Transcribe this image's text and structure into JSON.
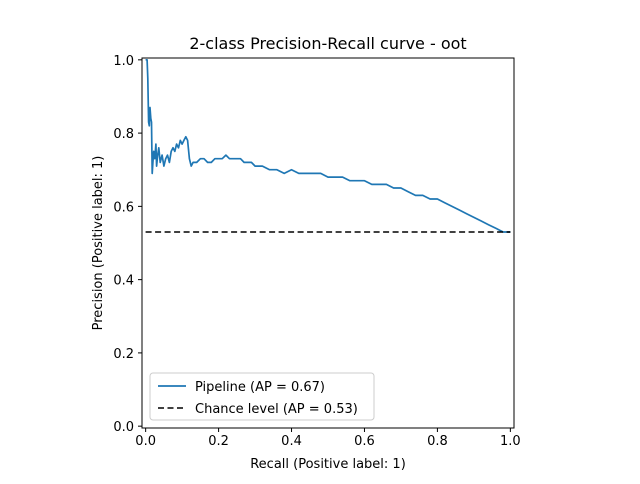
{
  "chart_data": {
    "type": "line",
    "title": "2-class Precision-Recall curve - oot",
    "xlabel": "Recall (Positive label: 1)",
    "ylabel": "Precision (Positive label: 1)",
    "xlim": [
      -0.01,
      1.01
    ],
    "ylim": [
      -0.005,
      1.005
    ],
    "xticks": [
      0.0,
      0.2,
      0.4,
      0.6,
      0.8,
      1.0
    ],
    "yticks": [
      0.0,
      0.2,
      0.4,
      0.6,
      0.8,
      1.0
    ],
    "xtick_labels": [
      "0.0",
      "0.2",
      "0.4",
      "0.6",
      "0.8",
      "1.0"
    ],
    "ytick_labels": [
      "0.0",
      "0.2",
      "0.4",
      "0.6",
      "0.8",
      "1.0"
    ],
    "grid": false,
    "legend_position": "lower-left",
    "series": [
      {
        "name": "Pipeline (AP = 0.67)",
        "color": "#1f77b4",
        "style": "solid",
        "x": [
          0.0,
          0.002,
          0.004,
          0.006,
          0.008,
          0.01,
          0.012,
          0.014,
          0.016,
          0.018,
          0.02,
          0.022,
          0.025,
          0.028,
          0.03,
          0.033,
          0.036,
          0.04,
          0.045,
          0.05,
          0.055,
          0.06,
          0.065,
          0.07,
          0.075,
          0.08,
          0.085,
          0.09,
          0.095,
          0.1,
          0.105,
          0.11,
          0.115,
          0.12,
          0.125,
          0.13,
          0.14,
          0.15,
          0.16,
          0.17,
          0.18,
          0.19,
          0.2,
          0.21,
          0.22,
          0.23,
          0.24,
          0.25,
          0.26,
          0.27,
          0.28,
          0.29,
          0.3,
          0.32,
          0.34,
          0.36,
          0.38,
          0.4,
          0.42,
          0.44,
          0.46,
          0.48,
          0.5,
          0.52,
          0.54,
          0.56,
          0.58,
          0.6,
          0.62,
          0.64,
          0.66,
          0.68,
          0.7,
          0.72,
          0.74,
          0.76,
          0.78,
          0.8,
          0.82,
          0.84,
          0.86,
          0.88,
          0.9,
          0.92,
          0.94,
          0.96,
          0.98,
          1.0
        ],
        "y": [
          1.0,
          1.0,
          1.0,
          0.95,
          0.83,
          0.82,
          0.87,
          0.84,
          0.83,
          0.69,
          0.72,
          0.75,
          0.73,
          0.77,
          0.71,
          0.74,
          0.76,
          0.72,
          0.74,
          0.71,
          0.73,
          0.74,
          0.72,
          0.75,
          0.76,
          0.75,
          0.77,
          0.76,
          0.78,
          0.77,
          0.78,
          0.79,
          0.78,
          0.73,
          0.71,
          0.72,
          0.72,
          0.73,
          0.73,
          0.72,
          0.72,
          0.73,
          0.73,
          0.73,
          0.74,
          0.73,
          0.73,
          0.73,
          0.73,
          0.72,
          0.72,
          0.72,
          0.71,
          0.71,
          0.7,
          0.7,
          0.69,
          0.7,
          0.69,
          0.69,
          0.69,
          0.69,
          0.68,
          0.68,
          0.68,
          0.67,
          0.67,
          0.67,
          0.66,
          0.66,
          0.66,
          0.65,
          0.65,
          0.64,
          0.63,
          0.63,
          0.62,
          0.62,
          0.61,
          0.6,
          0.59,
          0.58,
          0.57,
          0.56,
          0.55,
          0.54,
          0.53,
          0.53
        ]
      },
      {
        "name": "Chance level (AP = 0.53)",
        "color": "#000000",
        "style": "dashed",
        "x": [
          0.0,
          1.0
        ],
        "y": [
          0.53,
          0.53
        ]
      }
    ]
  }
}
